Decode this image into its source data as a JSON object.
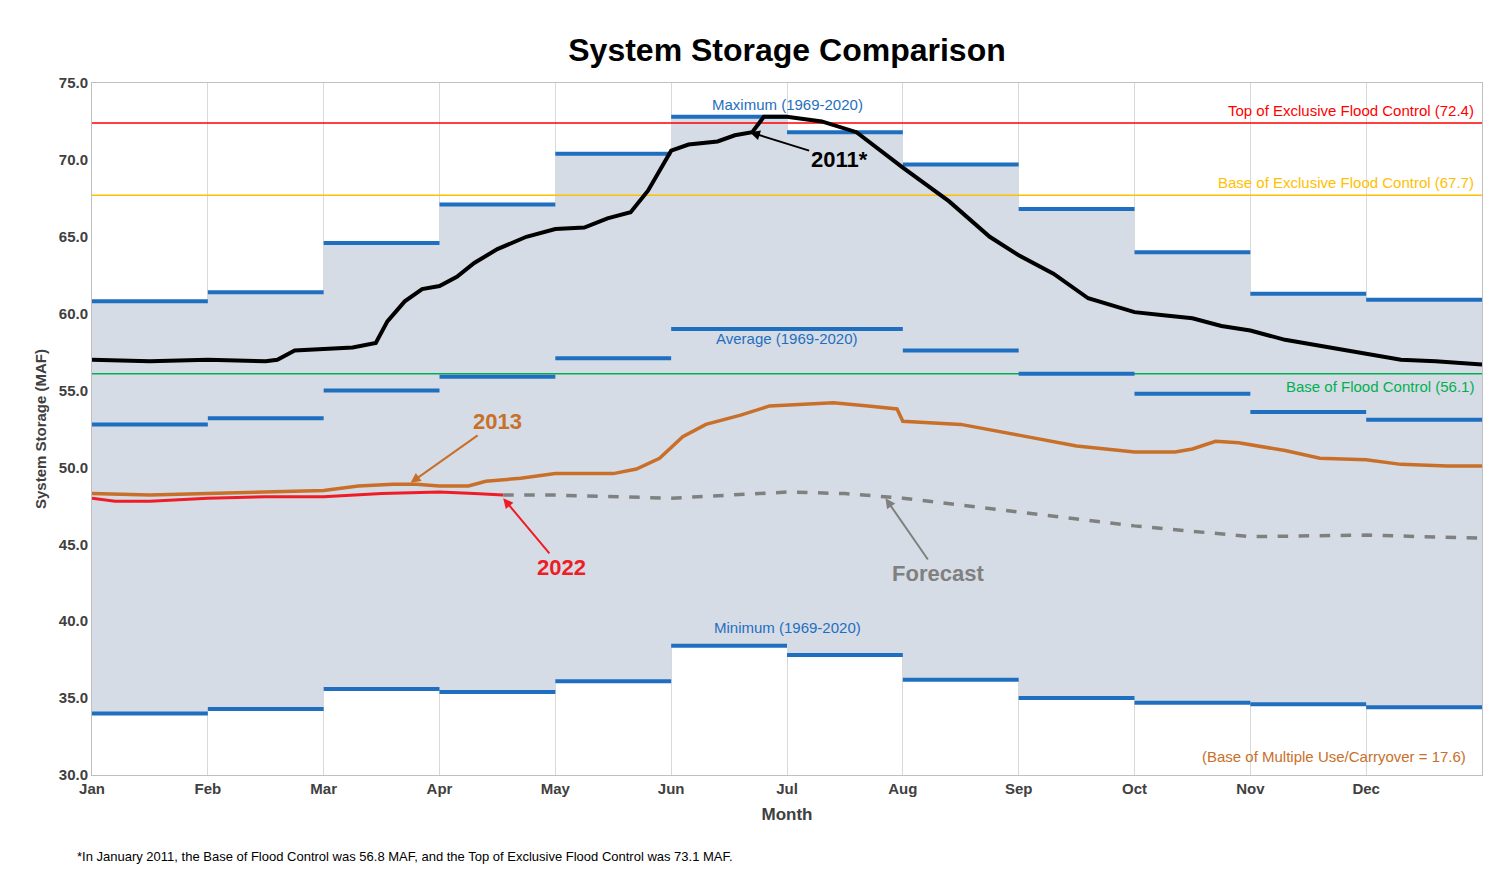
{
  "chart_data": {
    "type": "line",
    "title": "System Storage Comparison",
    "x_label": "Month",
    "y_label": "System Storage (MAF)",
    "xlim": [
      0,
      12
    ],
    "xticks": [
      {
        "value": 0,
        "label": "Jan"
      },
      {
        "value": 1,
        "label": "Feb"
      },
      {
        "value": 2,
        "label": "Mar"
      },
      {
        "value": 3,
        "label": "Apr"
      },
      {
        "value": 4,
        "label": "May"
      },
      {
        "value": 5,
        "label": "Jun"
      },
      {
        "value": 6,
        "label": "Jul"
      },
      {
        "value": 7,
        "label": "Aug"
      },
      {
        "value": 8,
        "label": "Sep"
      },
      {
        "value": 9,
        "label": "Oct"
      },
      {
        "value": 10,
        "label": "Nov"
      },
      {
        "value": 11,
        "label": "Dec"
      }
    ],
    "ylim": [
      30,
      75
    ],
    "yticks": [
      {
        "value": 30,
        "label": "30.0"
      },
      {
        "value": 35,
        "label": "35.0"
      },
      {
        "value": 40,
        "label": "40.0"
      },
      {
        "value": 45,
        "label": "45.0"
      },
      {
        "value": 50,
        "label": "50.0"
      },
      {
        "value": 55,
        "label": "55.0"
      },
      {
        "value": 60,
        "label": "60.0"
      },
      {
        "value": 65,
        "label": "65.0"
      },
      {
        "value": 70,
        "label": "70.0"
      },
      {
        "value": 75,
        "label": "75.0"
      }
    ],
    "grid": "x",
    "series": [
      {
        "name": "Maximum (1969-2020)",
        "type": "step",
        "color": "#1f6fc0",
        "x": [
          0,
          1,
          2,
          3,
          4,
          5,
          6,
          7,
          8,
          9,
          10,
          11
        ],
        "values": [
          60.8,
          61.4,
          64.6,
          67.1,
          70.4,
          72.8,
          71.8,
          69.7,
          66.8,
          64.0,
          61.3,
          60.9
        ]
      },
      {
        "name": "Average (1969-2020)",
        "type": "step",
        "color": "#1f6fc0",
        "x": [
          0,
          1,
          2,
          3,
          4,
          5,
          6,
          7,
          8,
          9,
          10,
          11
        ],
        "values": [
          52.8,
          53.2,
          55.0,
          55.9,
          57.1,
          59.0,
          59.0,
          57.6,
          56.1,
          54.8,
          53.6,
          53.1
        ]
      },
      {
        "name": "Minimum (1969-2020)",
        "type": "step",
        "color": "#1f6fc0",
        "x": [
          0,
          1,
          2,
          3,
          4,
          5,
          6,
          7,
          8,
          9,
          10,
          11
        ],
        "values": [
          34.0,
          34.3,
          35.6,
          35.4,
          36.1,
          38.4,
          37.8,
          36.2,
          35.0,
          34.7,
          34.6,
          34.4
        ]
      },
      {
        "name": "2011*",
        "type": "line",
        "color": "#000000",
        "line_style": "solid",
        "x": [
          0,
          0.5,
          1.0,
          1.5,
          1.6,
          1.75,
          2.0,
          2.25,
          2.45,
          2.55,
          2.7,
          2.85,
          3.0,
          3.15,
          3.3,
          3.5,
          3.75,
          4.0,
          4.25,
          4.45,
          4.65,
          4.8,
          5.0,
          5.15,
          5.4,
          5.55,
          5.7,
          5.8,
          6.0,
          6.3,
          6.6,
          7.0,
          7.4,
          7.75,
          8.0,
          8.3,
          8.6,
          9.0,
          9.25,
          9.5,
          9.75,
          10.0,
          10.3,
          10.6,
          11.0,
          11.3,
          11.6,
          12.0
        ],
        "values": [
          57.0,
          56.9,
          57.0,
          56.9,
          57.0,
          57.6,
          57.7,
          57.8,
          58.1,
          59.5,
          60.8,
          61.6,
          61.8,
          62.4,
          63.3,
          64.2,
          65.0,
          65.5,
          65.6,
          66.2,
          66.6,
          68.0,
          70.6,
          71.0,
          71.2,
          71.6,
          71.8,
          72.8,
          72.8,
          72.5,
          71.8,
          69.5,
          67.3,
          65.0,
          63.8,
          62.6,
          61.0,
          60.1,
          59.9,
          59.7,
          59.2,
          58.9,
          58.3,
          57.9,
          57.4,
          57.0,
          56.9,
          56.7
        ]
      },
      {
        "name": "2013",
        "type": "line",
        "color": "#c8702a",
        "line_style": "solid",
        "x": [
          0,
          0.5,
          1.0,
          1.5,
          2.0,
          2.3,
          2.6,
          2.8,
          3.0,
          3.25,
          3.4,
          3.7,
          4.0,
          4.5,
          4.7,
          4.9,
          5.1,
          5.3,
          5.6,
          5.85,
          6.2,
          6.4,
          6.7,
          6.95,
          7.0,
          7.5,
          8.0,
          8.5,
          9.0,
          9.35,
          9.5,
          9.7,
          9.9,
          10.3,
          10.6,
          11.0,
          11.3,
          11.7,
          12.0
        ],
        "values": [
          48.3,
          48.2,
          48.3,
          48.4,
          48.5,
          48.8,
          48.9,
          48.9,
          48.8,
          48.8,
          49.1,
          49.3,
          49.6,
          49.6,
          49.9,
          50.6,
          52.0,
          52.8,
          53.4,
          54.0,
          54.1,
          54.2,
          54.0,
          53.8,
          53.0,
          52.8,
          52.1,
          51.4,
          51.0,
          51.0,
          51.2,
          51.7,
          51.6,
          51.1,
          50.6,
          50.5,
          50.2,
          50.1,
          50.1
        ]
      },
      {
        "name": "2022",
        "type": "line",
        "color": "#ee1c25",
        "line_style": "solid",
        "x": [
          0,
          0.2,
          0.5,
          1.0,
          1.5,
          2.0,
          2.5,
          3.0,
          3.3,
          3.55
        ],
        "values": [
          48.0,
          47.8,
          47.8,
          48.0,
          48.1,
          48.1,
          48.3,
          48.4,
          48.3,
          48.2
        ]
      },
      {
        "name": "Forecast",
        "type": "line",
        "color": "#808080",
        "line_style": "dash",
        "x": [
          3.55,
          4.0,
          5.0,
          6.0,
          6.5,
          7.0,
          8.0,
          9.0,
          10.0,
          11.0,
          12.0
        ],
        "values": [
          48.2,
          48.2,
          48.0,
          48.4,
          48.3,
          48.0,
          47.1,
          46.2,
          45.5,
          45.6,
          45.4
        ]
      },
      {
        "name": "Top of Exclusive Flood Control (72.4)",
        "type": "hline",
        "color": "#ff0000",
        "values": [
          72.4
        ]
      },
      {
        "name": "Base of Exclusive Flood Control (67.7)",
        "type": "hline",
        "color": "#ffc000",
        "values": [
          67.7
        ]
      },
      {
        "name": "Base of Flood Control (56.1)",
        "type": "hline",
        "color": "#00b050",
        "values": [
          56.1
        ]
      }
    ],
    "note": "(Base of Multiple Use/Carryover = 17.6)",
    "footnote": "*In January 2011, the Base of Flood Control was 56.8 MAF, and the Top of Exclusive Flood Control was 73.1 MAF."
  }
}
